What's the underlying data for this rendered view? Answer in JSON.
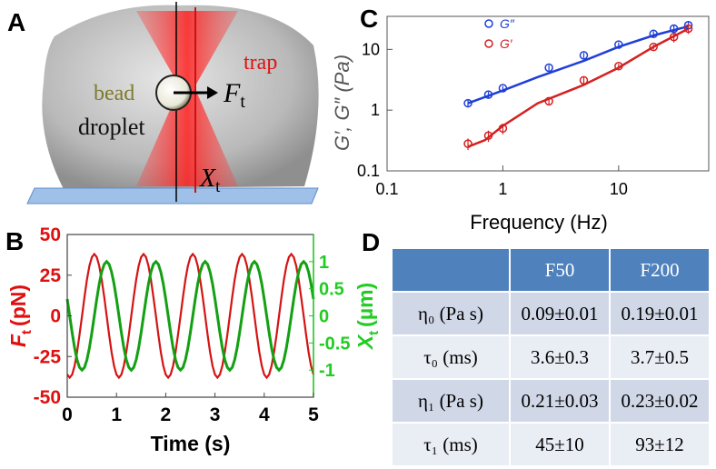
{
  "panel_labels": [
    "A",
    "B",
    "C",
    "D"
  ],
  "diagram": {
    "bead": "bead",
    "droplet": "droplet",
    "trap": "trap",
    "force": {
      "symbol": "F",
      "sub": "t"
    },
    "position": {
      "symbol": "X",
      "sub": "t"
    }
  },
  "chart_data": [
    {
      "type": "line",
      "xlabel": "Time (s)",
      "ylabel": {
        "symbol": "F",
        "sub": "t",
        "unit": "(pN)"
      },
      "y2label": {
        "symbol": "X",
        "sub": "t",
        "unit": "(µm)"
      },
      "x": [
        0,
        0.05,
        0.1,
        0.15,
        0.2,
        0.25,
        0.3,
        0.35,
        0.4,
        0.45,
        0.5,
        0.55,
        0.6,
        0.65,
        0.7,
        0.75,
        0.8,
        0.85,
        0.9,
        0.95,
        1,
        1.05,
        1.1,
        1.15,
        1.2,
        1.25,
        1.3,
        1.35,
        1.4,
        1.45,
        1.5,
        1.55,
        1.6,
        1.65,
        1.7,
        1.75,
        1.8,
        1.85,
        1.9,
        1.95,
        2,
        2.05,
        2.1,
        2.15,
        2.2,
        2.25,
        2.3,
        2.35,
        2.4,
        2.45,
        2.5,
        2.55,
        2.6,
        2.65,
        2.7,
        2.75,
        2.8,
        2.85,
        2.9,
        2.95,
        3,
        3.05,
        3.1,
        3.15,
        3.2,
        3.25,
        3.3,
        3.35,
        3.4,
        3.45,
        3.5,
        3.55,
        3.6,
        3.65,
        3.7,
        3.75,
        3.8,
        3.85,
        3.9,
        3.95,
        4,
        4.05,
        4.1,
        4.15,
        4.2,
        4.25,
        4.3,
        4.35,
        4.4,
        4.45,
        4.5,
        4.55,
        4.6,
        4.65,
        4.7,
        4.75,
        4.8,
        4.85,
        4.9,
        4.95,
        5
      ],
      "series": [
        {
          "color": "#d41414",
          "values": [
            -36.1,
            -38,
            -36.1,
            -30.7,
            -22.3,
            -11.7,
            0,
            11.7,
            22.3,
            30.7,
            36.1,
            38,
            36.1,
            30.7,
            22.3,
            11.7,
            0,
            -11.7,
            -22.3,
            -30.7,
            -36.1,
            -38,
            -36.1,
            -30.7,
            -22.3,
            -11.7,
            0,
            11.7,
            22.3,
            30.7,
            36.1,
            38,
            36.1,
            30.7,
            22.3,
            11.7,
            0,
            -11.7,
            -22.3,
            -30.7,
            -36.1,
            -38,
            -36.1,
            -30.7,
            -22.3,
            -11.7,
            0,
            11.7,
            22.3,
            30.7,
            36.1,
            38,
            36.1,
            30.7,
            22.3,
            11.7,
            0,
            -11.7,
            -22.3,
            -30.7,
            -36.1,
            -38,
            -36.1,
            -30.7,
            -22.3,
            -11.7,
            0,
            11.7,
            22.3,
            30.7,
            36.1,
            38,
            36.1,
            30.7,
            22.3,
            11.7,
            0,
            -11.7,
            -22.3,
            -30.7,
            -36.1,
            -38,
            -36.1,
            -30.7,
            -22.3,
            -11.7,
            0,
            11.7,
            22.3,
            30.7,
            36.1,
            38,
            36.1,
            30.7,
            22.3,
            11.7,
            0,
            -11.7,
            -22.3,
            -30.7,
            -36.1
          ]
        },
        {
          "color": "#13a013",
          "axis": "y2",
          "values": [
            0.31,
            0,
            -0.31,
            -0.59,
            -0.81,
            -0.95,
            -1,
            -0.95,
            -0.81,
            -0.59,
            -0.31,
            0,
            0.31,
            0.59,
            0.81,
            0.95,
            1,
            0.95,
            0.81,
            0.59,
            0.31,
            0,
            -0.31,
            -0.59,
            -0.81,
            -0.95,
            -1,
            -0.95,
            -0.81,
            -0.59,
            -0.31,
            0,
            0.31,
            0.59,
            0.81,
            0.95,
            1,
            0.95,
            0.81,
            0.59,
            0.31,
            0,
            -0.31,
            -0.59,
            -0.81,
            -0.95,
            -1,
            -0.95,
            -0.81,
            -0.59,
            -0.31,
            0,
            0.31,
            0.59,
            0.81,
            0.95,
            1,
            0.95,
            0.81,
            0.59,
            0.31,
            0,
            -0.31,
            -0.59,
            -0.81,
            -0.95,
            -1,
            -0.95,
            -0.81,
            -0.59,
            -0.31,
            0,
            0.31,
            0.59,
            0.81,
            0.95,
            1,
            0.95,
            0.81,
            0.59,
            0.31,
            0,
            -0.31,
            -0.59,
            -0.81,
            -0.95,
            -1,
            -0.95,
            -0.81,
            -0.59,
            -0.31,
            0,
            0.31,
            0.59,
            0.81,
            0.95,
            1,
            0.95,
            0.81,
            0.59,
            0.31
          ]
        }
      ],
      "xlim": [
        0,
        5
      ],
      "xticks": [
        0,
        1,
        2,
        3,
        4,
        5
      ],
      "ylim": [
        -50,
        50
      ],
      "yticks": [
        -50,
        -25,
        0,
        25,
        50
      ],
      "ycolor": "#e01010",
      "y2lim": [
        -1.5,
        1.5
      ],
      "y2ticks": [
        -1,
        -0.5,
        0,
        0.5,
        1
      ],
      "y2color": "#22cc22"
    },
    {
      "type": "scatter",
      "xlabel": "Frequency (Hz)",
      "ylabel": "G′, G″ (Pa)",
      "log_x": true,
      "log_y": true,
      "x": [
        0.5,
        0.75,
        1,
        2.5,
        5,
        10,
        20,
        30,
        40
      ],
      "series": [
        {
          "name": "G″",
          "color": "#1f3fd8",
          "values": [
            1.3,
            1.8,
            2.3,
            5,
            8,
            12,
            18,
            22,
            25
          ],
          "errors": [
            0.15,
            0.2,
            0.2,
            0.5,
            0.8,
            1,
            2,
            3,
            4
          ]
        },
        {
          "name": "G′",
          "color": "#d42020",
          "values": [
            0.28,
            0.38,
            0.5,
            1.4,
            3.1,
            5.3,
            11,
            16,
            22
          ],
          "errors": [
            0.06,
            0.08,
            0.1,
            0.2,
            0.4,
            0.5,
            1,
            3,
            4
          ]
        }
      ],
      "fits": [
        {
          "color": "#1f3fd8",
          "x": [
            0.5,
            1,
            2,
            5,
            10,
            20,
            40
          ],
          "values": [
            1.3,
            2.1,
            3.5,
            6.5,
            11,
            17,
            24
          ]
        },
        {
          "color": "#d42020",
          "x": [
            0.5,
            0.7,
            1,
            2,
            5,
            10,
            20,
            40
          ],
          "values": [
            0.25,
            0.32,
            0.55,
            1.3,
            2.6,
            5,
            11,
            22
          ]
        }
      ],
      "xlim": [
        0.1,
        60
      ],
      "xticks": [
        0.1,
        1,
        10
      ],
      "ylim": [
        0.1,
        35
      ],
      "yticks": [
        0.1,
        1,
        10
      ],
      "legend": "top-left"
    }
  ],
  "table": {
    "header": [
      "F50",
      "F200"
    ],
    "rows": [
      [
        "η₀ (Pa s)",
        "0.09±0.01",
        "0.19±0.01"
      ],
      [
        "τ₀ (ms)",
        "3.6±0.3",
        "3.7±0.5"
      ],
      [
        "η₁ (Pa s)",
        "0.21±0.03",
        "0.23±0.02"
      ],
      [
        "τ₁ (ms)",
        "45±10",
        "93±12"
      ]
    ]
  }
}
